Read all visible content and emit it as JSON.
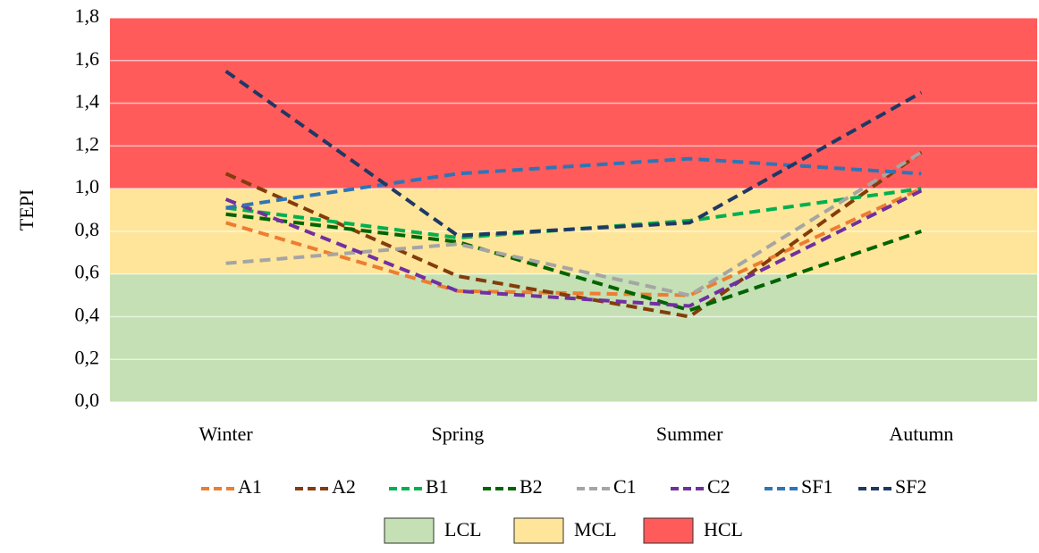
{
  "chart_data": {
    "type": "line",
    "ylabel": "TEPI",
    "categories": [
      "Winter",
      "Spring",
      "Summer",
      "Autumn"
    ],
    "ylim": [
      0,
      1.8
    ],
    "yticks": [
      {
        "value": 0,
        "label": "0,0"
      },
      {
        "value": 0.2,
        "label": "0,2"
      },
      {
        "value": 0.4,
        "label": "0,4"
      },
      {
        "value": 0.6,
        "label": "0,6"
      },
      {
        "value": 0.8,
        "label": "0,8"
      },
      {
        "value": 1,
        "label": "1,0"
      },
      {
        "value": 1.2,
        "label": "1,2"
      },
      {
        "value": 1.4,
        "label": "1,4"
      },
      {
        "value": 1.6,
        "label": "1,6"
      },
      {
        "value": 1.8,
        "label": "1,8"
      }
    ],
    "grid": true,
    "zones": [
      {
        "name": "LCL",
        "color": "#c5e0b4",
        "range": [
          0,
          0.6
        ]
      },
      {
        "name": "MCL",
        "color": "#fee599",
        "range": [
          0.6,
          1.0
        ]
      },
      {
        "name": "HCL",
        "color": "#ff5b5b",
        "range": [
          1.0,
          1.8
        ]
      }
    ],
    "series": [
      {
        "name": "A1",
        "color": "#ed7d31",
        "values": [
          0.84,
          0.52,
          0.5,
          1.0
        ]
      },
      {
        "name": "A2",
        "color": "#843c0c",
        "values": [
          1.07,
          0.59,
          0.4,
          1.17
        ]
      },
      {
        "name": "B1",
        "color": "#00b050",
        "values": [
          0.91,
          0.77,
          0.85,
          1.0
        ]
      },
      {
        "name": "B2",
        "color": "#006400",
        "values": [
          0.88,
          0.75,
          0.43,
          0.8
        ]
      },
      {
        "name": "C1",
        "color": "#a5a5a5",
        "values": [
          0.65,
          0.74,
          0.5,
          1.17
        ]
      },
      {
        "name": "C2",
        "color": "#7030a0",
        "values": [
          0.95,
          0.52,
          0.45,
          0.99
        ]
      },
      {
        "name": "SF1",
        "color": "#2e75b6",
        "values": [
          0.91,
          1.07,
          1.14,
          1.07
        ]
      },
      {
        "name": "SF2",
        "color": "#1f3864",
        "values": [
          1.55,
          0.78,
          0.84,
          1.45
        ]
      }
    ]
  }
}
